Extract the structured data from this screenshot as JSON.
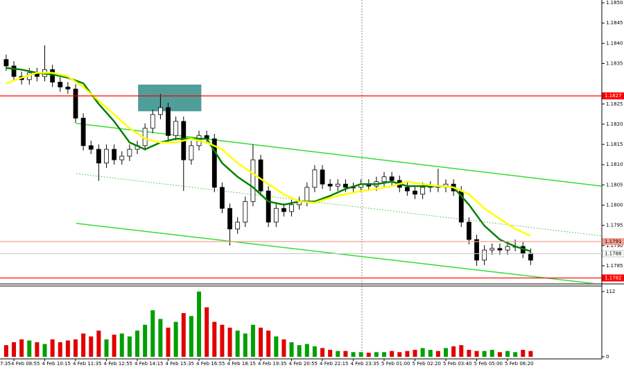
{
  "chart_data": {
    "type": "candlestick",
    "x_label_cut": "7:35",
    "categories": [
      null,
      "4 Feb 08:55",
      null,
      null,
      null,
      "4 Feb 10:15",
      null,
      null,
      null,
      "4 Feb 11:35",
      null,
      null,
      null,
      "4 Feb 12:55",
      null,
      null,
      null,
      "4 Feb 14:15",
      null,
      null,
      null,
      "4 Feb 15:35",
      null,
      null,
      null,
      "4 Feb 16:55",
      null,
      null,
      null,
      "4 Feb 18:15",
      null,
      null,
      null,
      "4 Feb 19:35",
      null,
      null,
      null,
      "4 Feb 20:55",
      null,
      null,
      null,
      "4 Feb 22:15",
      null,
      null,
      null,
      "4 Feb 23:35",
      null,
      null,
      null,
      "5 Feb 01:00",
      null,
      null,
      null,
      "5 Feb 02:20",
      null,
      null,
      null,
      "5 Feb 03:40",
      null,
      null,
      null,
      "5 Feb 05:00",
      null,
      null,
      null,
      "5 Feb 06:20",
      null,
      null,
      null
    ],
    "open": [
      1.1836,
      1.18344,
      1.18318,
      1.1831,
      1.18327,
      1.18318,
      1.18335,
      1.18304,
      1.18292,
      1.18287,
      1.18215,
      1.18147,
      1.18138,
      1.18104,
      1.18138,
      1.18112,
      1.18121,
      1.18138,
      1.18147,
      1.1819,
      1.18224,
      1.18241,
      1.18172,
      1.18207,
      1.18112,
      1.18147,
      1.18172,
      1.18164,
      1.18044,
      1.17992,
      1.17941,
      1.17958,
      1.18009,
      1.18112,
      1.18035,
      1.17958,
      1.17992,
      1.17984,
      1.18001,
      1.18009,
      1.18044,
      1.18087,
      1.18052,
      1.18047,
      1.18052,
      1.18044,
      1.18044,
      1.18052,
      1.18047,
      1.18058,
      1.1807,
      1.18061,
      1.18044,
      1.18035,
      1.18027,
      1.18044,
      1.18047,
      1.18044,
      1.18052,
      1.18035,
      1.17958,
      1.17915,
      1.17864,
      1.17889,
      1.17893,
      1.17889,
      1.17898,
      1.17898,
      1.17881
    ],
    "high": [
      1.18372,
      1.18356,
      1.1833,
      1.18339,
      1.18339,
      1.18395,
      1.18347,
      1.18316,
      1.18304,
      1.18299,
      1.18227,
      1.18159,
      1.1815,
      1.1815,
      1.1815,
      1.18133,
      1.1815,
      1.18159,
      1.18202,
      1.18236,
      1.18275,
      1.18253,
      1.18219,
      1.18219,
      1.18159,
      1.18184,
      1.18184,
      1.18176,
      1.18056,
      1.18004,
      1.1797,
      1.18021,
      1.1815,
      1.18124,
      1.18047,
      1.18004,
      1.18004,
      1.18013,
      1.18021,
      1.18056,
      1.18099,
      1.18099,
      1.18064,
      1.18064,
      1.18064,
      1.18056,
      1.18064,
      1.18064,
      1.1807,
      1.18082,
      1.18082,
      1.18073,
      1.18056,
      1.18047,
      1.18056,
      1.18059,
      1.1809,
      1.18064,
      1.18064,
      1.18047,
      1.1797,
      1.17927,
      1.17901,
      1.17905,
      1.17905,
      1.1791,
      1.17915,
      1.1791,
      1.17893
    ],
    "low": [
      1.18332,
      1.18306,
      1.18298,
      1.18298,
      1.18306,
      1.18306,
      1.18292,
      1.1828,
      1.18275,
      1.18203,
      1.18135,
      1.18126,
      1.1806,
      1.18092,
      1.181,
      1.181,
      1.18109,
      1.18126,
      1.18135,
      1.18178,
      1.18212,
      1.1816,
      1.1816,
      1.18035,
      1.181,
      1.18135,
      1.18152,
      1.18032,
      1.1798,
      1.179,
      1.17929,
      1.17946,
      1.17997,
      1.18023,
      1.17946,
      1.17946,
      1.17972,
      1.17972,
      1.17989,
      1.17997,
      1.18032,
      1.1804,
      1.18035,
      1.18035,
      1.18032,
      1.18032,
      1.18032,
      1.18035,
      1.18035,
      1.18046,
      1.18049,
      1.18032,
      1.18023,
      1.18015,
      1.18015,
      1.18032,
      1.18032,
      1.18032,
      1.18023,
      1.17946,
      1.17903,
      1.1785,
      1.17852,
      1.17877,
      1.17877,
      1.17877,
      1.17886,
      1.17869,
      1.17852
    ],
    "close": [
      1.18344,
      1.18318,
      1.1831,
      1.18327,
      1.18318,
      1.18335,
      1.18304,
      1.18292,
      1.18287,
      1.18215,
      1.18147,
      1.18138,
      1.18104,
      1.18138,
      1.18112,
      1.18121,
      1.18138,
      1.18147,
      1.1819,
      1.18224,
      1.18241,
      1.18172,
      1.18207,
      1.18112,
      1.18147,
      1.18172,
      1.18164,
      1.18044,
      1.17992,
      1.17941,
      1.17958,
      1.18009,
      1.18112,
      1.18035,
      1.17958,
      1.17992,
      1.17984,
      1.18001,
      1.18009,
      1.18044,
      1.18087,
      1.18052,
      1.18047,
      1.18052,
      1.18044,
      1.18044,
      1.18052,
      1.18047,
      1.18058,
      1.1807,
      1.18061,
      1.18044,
      1.18035,
      1.18027,
      1.18044,
      1.18047,
      1.18044,
      1.18052,
      1.18035,
      1.17958,
      1.17915,
      1.17864,
      1.17889,
      1.17893,
      1.17889,
      1.17898,
      1.17898,
      1.17881,
      1.17864
    ],
    "candle_color": "#000000",
    "ylim": [
      1.17807,
      1.18507
    ],
    "yticks": [
      {
        "value": 1.185,
        "label": "1.1850"
      },
      1.1845,
      {
        "value": 1.184,
        "label": "1.1840"
      },
      1.1835,
      1.1825,
      {
        "value": 1.182,
        "label": "1.1820"
      },
      1.1815,
      {
        "value": 1.181,
        "label": "1.1810"
      },
      1.1805,
      {
        "value": 1.18,
        "label": "1.1800"
      },
      1.1795,
      {
        "value": 1.179,
        "label": "1.1790"
      },
      1.1785
    ],
    "grid": false,
    "series": [
      {
        "color": "#008000",
        "x": [
          0,
          2,
          4,
          6,
          8,
          10,
          12,
          14,
          16,
          18,
          20,
          22,
          24,
          26,
          28,
          30,
          32,
          34,
          36,
          38,
          40,
          42,
          44,
          46,
          48,
          50,
          52,
          54,
          56,
          58,
          60,
          62,
          64,
          66,
          68
        ],
        "values": [
          1.18339,
          1.18335,
          1.18327,
          1.18323,
          1.18315,
          1.18301,
          1.1825,
          1.18207,
          1.18155,
          1.18138,
          1.18155,
          1.18164,
          1.18164,
          1.18164,
          1.18104,
          1.1807,
          1.18044,
          1.18009,
          1.18001,
          1.18009,
          1.18009,
          1.18023,
          1.1804,
          1.18052,
          1.18052,
          1.18058,
          1.18047,
          1.18047,
          1.18047,
          1.18044,
          1.18001,
          1.17949,
          1.17915,
          1.17898,
          1.17886
        ]
      },
      {
        "color": "#ffff00",
        "x": [
          0,
          2,
          4,
          6,
          8,
          10,
          12,
          14,
          16,
          18,
          20,
          22,
          24,
          26,
          28,
          30,
          32,
          34,
          36,
          38,
          40,
          42,
          44,
          46,
          48,
          50,
          52,
          54,
          56,
          58,
          60,
          62,
          64,
          66,
          68
        ],
        "values": [
          1.18301,
          1.18315,
          1.18327,
          1.18327,
          1.18318,
          1.18292,
          1.18258,
          1.18224,
          1.1819,
          1.18164,
          1.18155,
          1.18155,
          1.18164,
          1.18155,
          1.18138,
          1.18104,
          1.18078,
          1.18052,
          1.18027,
          1.18009,
          1.18006,
          1.18018,
          1.18027,
          1.18035,
          1.1804,
          1.18047,
          1.18058,
          1.18052,
          1.18047,
          1.18044,
          1.18027,
          1.17992,
          1.17966,
          1.17941,
          1.17924
        ]
      }
    ],
    "trendlines": [
      {
        "x": [
          9.09,
          77.2
        ],
        "y": [
          1.18202,
          1.18047
        ],
        "color": "#33dd33",
        "style": "solid"
      },
      {
        "x": [
          9.09,
          77.2
        ],
        "y": [
          1.18078,
          1.17924
        ],
        "color": "#66cc66",
        "style": "dotted"
      },
      {
        "x": [
          9.09,
          77.2
        ],
        "y": [
          1.17955,
          1.17804
        ],
        "color": "#33dd33",
        "style": "solid"
      }
    ],
    "highlight": {
      "x": [
        17.1,
        25.3
      ],
      "y": [
        1.18232,
        1.18298
      ],
      "color": "#4f9e9a"
    },
    "levels": [
      {
        "value": 1.1827,
        "color": "#ff0000",
        "label_fill": "#ff0000",
        "label_text": "#ffffff"
      },
      {
        "value": 1.1791,
        "color": "#f4a090",
        "label_fill": "#f4a090",
        "label_text": "#000000"
      },
      {
        "value": 1.1788,
        "color": "#c8c8c8",
        "label_fill": "#ffffff",
        "label_text": "#000000"
      },
      {
        "value": 1.1782,
        "color": "#ff0000",
        "label_fill": "#ff0000",
        "label_text": "#ffffff"
      }
    ],
    "volume": {
      "values": [
        20,
        25,
        30,
        28,
        25,
        22,
        30,
        25,
        28,
        30,
        40,
        35,
        45,
        30,
        38,
        40,
        35,
        45,
        55,
        80,
        65,
        50,
        60,
        75,
        70,
        112,
        85,
        60,
        55,
        50,
        45,
        40,
        55,
        50,
        45,
        35,
        30,
        25,
        20,
        22,
        18,
        15,
        12,
        10,
        10,
        8,
        8,
        7,
        8,
        8,
        10,
        8,
        10,
        12,
        15,
        12,
        10,
        15,
        18,
        20,
        12,
        10,
        10,
        12,
        8,
        10,
        8,
        12,
        10
      ],
      "up_color": "#00a000",
      "down_color": "#e00000",
      "ylim": [
        0,
        112
      ],
      "yticks": [
        0,
        112
      ]
    }
  }
}
